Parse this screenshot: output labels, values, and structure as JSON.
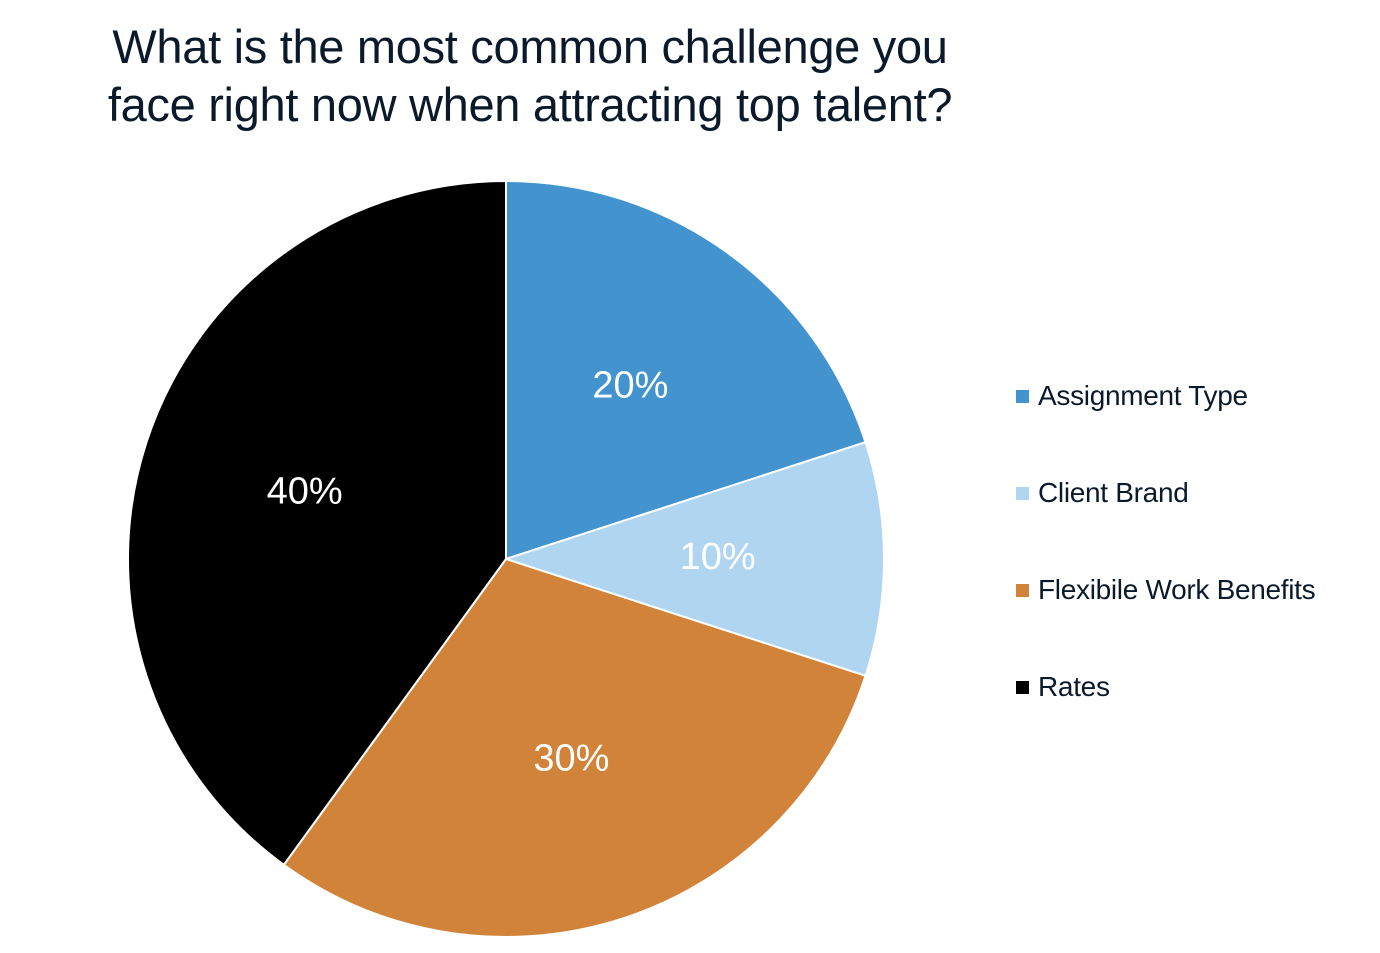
{
  "chart_data": {
    "type": "pie",
    "title": "What is the most common challenge you face right now when attracting top talent?",
    "title_lines": [
      "What is the most common challenge you",
      "face right now when attracting top talent?"
    ],
    "slices": [
      {
        "label": "Assignment Type",
        "value": 20,
        "display": "20%",
        "color": "#4393CE"
      },
      {
        "label": "Client Brand",
        "value": 10,
        "display": "10%",
        "color": "#AFD5F0"
      },
      {
        "label": "Flexibile Work Benefits",
        "value": 30,
        "display": "30%",
        "color": "#D08339"
      },
      {
        "label": "Rates",
        "value": 40,
        "display": "40%",
        "color": "#000000"
      }
    ],
    "legend_position": "right"
  }
}
